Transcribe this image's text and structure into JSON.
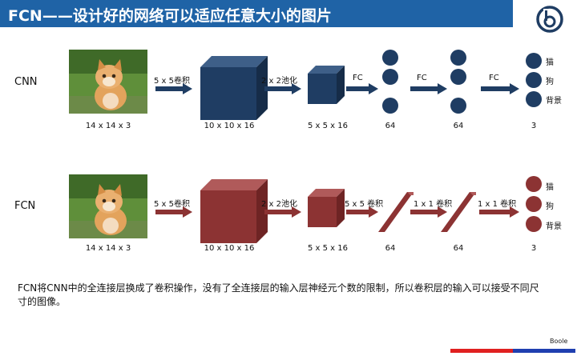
{
  "header": {
    "title": "FCN——设计好的网络可以适应任意大小的图片",
    "bar_color": "#1f63a6",
    "logo_icon": "boole-logo-icon"
  },
  "cnn": {
    "label": "CNN",
    "input_dim": "14 x 14 x 3",
    "op1": "5 x 5卷积",
    "block1_dim": "10 x 10 x 16",
    "op2": "2 x 2池化",
    "block2_dim": "5 x 5 x 16",
    "op3": "FC",
    "layer3_dim": "64",
    "op4": "FC",
    "layer4_dim": "64",
    "op5": "FC",
    "output_dim": "3",
    "classes": [
      "猫",
      "狗",
      "背景"
    ],
    "color": "#1f3d63"
  },
  "fcn": {
    "label": "FCN",
    "input_dim": "14 x 14 x 3",
    "op1": "5 x 5卷积",
    "block1_dim": "10 x 10 x 16",
    "op2": "2 x 2池化",
    "block2_dim": "5 x 5 x 16",
    "op3": "5 x 5 卷积",
    "layer3_dim": "64",
    "op4": "1 x 1 卷积",
    "layer4_dim": "64",
    "op5": "1 x 1 卷积",
    "output_dim": "3",
    "classes": [
      "猫",
      "狗",
      "背景"
    ],
    "color": "#8c3333"
  },
  "caption": "FCN将CNN中的全连接层换成了卷积操作，没有了全连接层的输入层神经元个数的限制，所以卷积层的输入可以接受不同尺寸的图像。",
  "footer": {
    "brand": "Boole",
    "colors": [
      "#e02020",
      "#1f3fb0"
    ]
  }
}
